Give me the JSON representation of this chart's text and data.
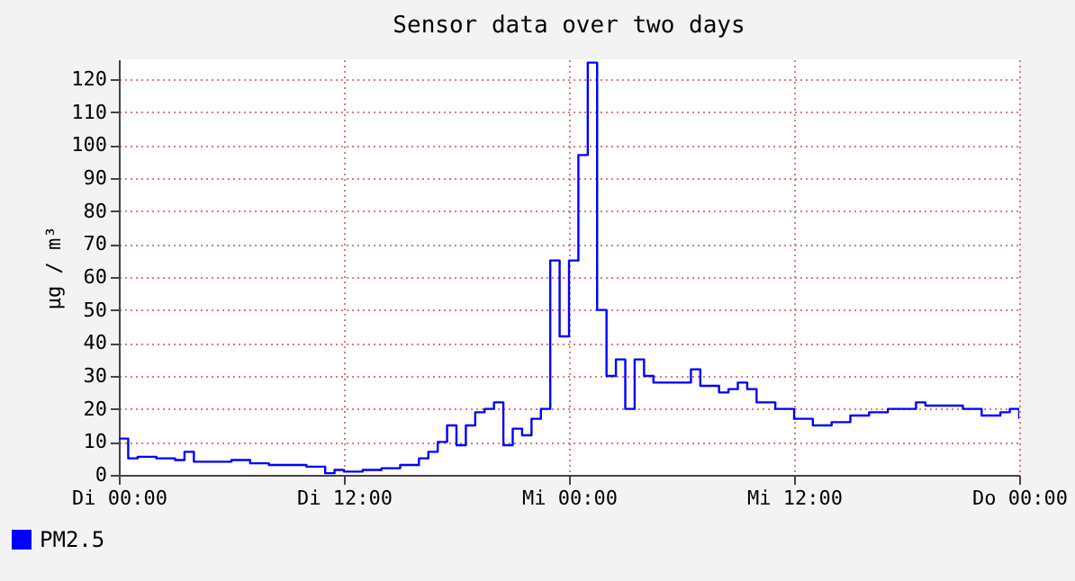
{
  "chart_data": {
    "type": "step",
    "title": "Sensor data over two days",
    "ylabel": "µg / m³",
    "categories": [
      "Di 00:00",
      null,
      null,
      null,
      null,
      null,
      null,
      null,
      null,
      null,
      null,
      null,
      null,
      null,
      null,
      null,
      null,
      null,
      null,
      null,
      null,
      null,
      null,
      null,
      "Di 12:00",
      null,
      null,
      null,
      null,
      null,
      null,
      null,
      null,
      null,
      null,
      null,
      null,
      null,
      null,
      null,
      null,
      null,
      null,
      null,
      null,
      null,
      null,
      null,
      "Mi 00:00",
      null,
      null,
      null,
      null,
      null,
      null,
      null,
      null,
      null,
      null,
      null,
      null,
      null,
      null,
      null,
      null,
      null,
      null,
      null,
      null,
      null,
      null,
      null,
      "Mi 12:00",
      null,
      null,
      null,
      null,
      null,
      null,
      null,
      null,
      null,
      null,
      null,
      null,
      null,
      null,
      null,
      null,
      null,
      null,
      null,
      null,
      null,
      null,
      null,
      "Do 00:00"
    ],
    "series": [
      {
        "name": "PM2.5",
        "color": "#0000ff",
        "values": [
          11,
          5,
          5.5,
          5.5,
          5,
          5,
          4.5,
          7,
          4,
          4,
          4,
          4,
          4.5,
          4.5,
          3.5,
          3.5,
          3,
          3,
          3,
          3,
          2.5,
          2.5,
          0.5,
          1.5,
          1,
          1,
          1.5,
          1.5,
          2,
          2,
          3,
          3,
          5,
          7,
          10,
          15,
          9,
          15,
          19,
          20,
          22,
          9,
          14,
          12,
          17,
          20,
          65,
          42,
          65,
          97,
          125,
          50,
          30,
          35,
          20,
          35,
          30,
          28,
          28,
          28,
          28,
          32,
          27,
          27,
          25,
          26,
          28,
          26,
          22,
          22,
          20,
          20,
          17,
          17,
          15,
          15,
          16,
          16,
          18,
          18,
          19,
          19,
          20,
          20,
          20,
          22,
          21,
          21,
          21,
          21,
          20,
          20,
          18,
          18,
          19,
          20,
          17
        ]
      }
    ],
    "ylim": [
      0,
      126
    ],
    "yticks": [
      0,
      10,
      20,
      30,
      40,
      50,
      60,
      70,
      80,
      90,
      100,
      110,
      120
    ],
    "grid": true,
    "legend": "bottom left"
  }
}
